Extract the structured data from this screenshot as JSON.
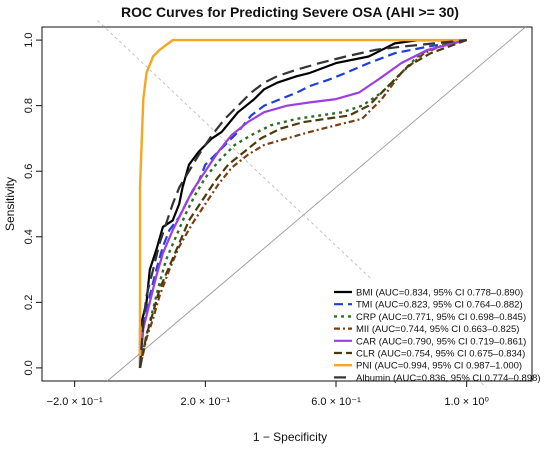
{
  "chart_data": {
    "type": "line",
    "title": "ROC Curves for Predicting Severe OSA (AHI >= 30)",
    "xlabel": "1 − Specificity",
    "ylabel": "Sensitivity",
    "xlim": [
      -0.3,
      1.2
    ],
    "ylim": [
      -0.04,
      1.04
    ],
    "x_ticks": [
      {
        "value": -0.2,
        "label": "−2.0 × 10⁻¹"
      },
      {
        "value": 0.2,
        "label": "2.0 × 10⁻¹"
      },
      {
        "value": 0.6,
        "label": "6.0 × 10⁻¹"
      },
      {
        "value": 1.0,
        "label": "1.0 × 10⁰"
      }
    ],
    "y_ticks": [
      {
        "value": 0.0,
        "label": "0.0"
      },
      {
        "value": 0.2,
        "label": "0.2"
      },
      {
        "value": 0.4,
        "label": "0.4"
      },
      {
        "value": 0.6,
        "label": "0.6"
      },
      {
        "value": 0.8,
        "label": "0.8"
      },
      {
        "value": 1.0,
        "label": "1.0"
      }
    ],
    "grid": false,
    "legend_position": "bottom-right",
    "reference_lines": [
      {
        "points": [
          [
            -0.1,
            -0.04
          ],
          [
            1.18,
            1.04
          ]
        ],
        "color": "#9a9a9a",
        "style": "solid"
      },
      {
        "points": [
          [
            -0.13,
            1.06
          ],
          [
            1.06,
            -0.06
          ]
        ],
        "color": "#bdbdbd",
        "style": "dashed"
      }
    ],
    "series": [
      {
        "name": "BMI (AUC=0.834, 95% CI 0.778–0.890)",
        "color": "#000000",
        "dash": "",
        "width": 2.2,
        "points": [
          [
            0.0,
            0.0
          ],
          [
            0.0,
            0.12
          ],
          [
            0.02,
            0.2
          ],
          [
            0.03,
            0.3
          ],
          [
            0.05,
            0.36
          ],
          [
            0.07,
            0.43
          ],
          [
            0.1,
            0.45
          ],
          [
            0.12,
            0.5
          ],
          [
            0.13,
            0.55
          ],
          [
            0.15,
            0.62
          ],
          [
            0.18,
            0.66
          ],
          [
            0.22,
            0.7
          ],
          [
            0.25,
            0.72
          ],
          [
            0.3,
            0.78
          ],
          [
            0.35,
            0.82
          ],
          [
            0.38,
            0.85
          ],
          [
            0.42,
            0.87
          ],
          [
            0.48,
            0.89
          ],
          [
            0.52,
            0.9
          ],
          [
            0.6,
            0.93
          ],
          [
            0.7,
            0.95
          ],
          [
            0.78,
            0.99
          ],
          [
            0.85,
            1.0
          ],
          [
            1.0,
            1.0
          ]
        ]
      },
      {
        "name": "TMI (AUC=0.823, 95% CI 0.764–0.882)",
        "color": "#1f3fd8",
        "dash": "9 5",
        "width": 2.2,
        "points": [
          [
            0.0,
            0.0
          ],
          [
            0.01,
            0.13
          ],
          [
            0.03,
            0.22
          ],
          [
            0.05,
            0.3
          ],
          [
            0.07,
            0.37
          ],
          [
            0.09,
            0.42
          ],
          [
            0.12,
            0.46
          ],
          [
            0.15,
            0.52
          ],
          [
            0.18,
            0.57
          ],
          [
            0.2,
            0.62
          ],
          [
            0.25,
            0.67
          ],
          [
            0.3,
            0.72
          ],
          [
            0.34,
            0.77
          ],
          [
            0.38,
            0.8
          ],
          [
            0.43,
            0.82
          ],
          [
            0.48,
            0.84
          ],
          [
            0.52,
            0.86
          ],
          [
            0.58,
            0.88
          ],
          [
            0.63,
            0.9
          ],
          [
            0.7,
            0.93
          ],
          [
            0.78,
            0.96
          ],
          [
            0.88,
            0.98
          ],
          [
            1.0,
            1.0
          ]
        ]
      },
      {
        "name": "CRP (AUC=0.771, 95% CI 0.698–0.845)",
        "color": "#2c6e2a",
        "dash": "3 4",
        "width": 2.4,
        "points": [
          [
            0.0,
            0.0
          ],
          [
            0.02,
            0.1
          ],
          [
            0.04,
            0.18
          ],
          [
            0.06,
            0.26
          ],
          [
            0.08,
            0.33
          ],
          [
            0.11,
            0.4
          ],
          [
            0.14,
            0.47
          ],
          [
            0.17,
            0.53
          ],
          [
            0.2,
            0.58
          ],
          [
            0.24,
            0.63
          ],
          [
            0.29,
            0.68
          ],
          [
            0.34,
            0.71
          ],
          [
            0.4,
            0.74
          ],
          [
            0.48,
            0.76
          ],
          [
            0.55,
            0.77
          ],
          [
            0.62,
            0.78
          ],
          [
            0.68,
            0.8
          ],
          [
            0.74,
            0.84
          ],
          [
            0.8,
            0.9
          ],
          [
            0.86,
            0.96
          ],
          [
            0.94,
            0.99
          ],
          [
            1.0,
            1.0
          ]
        ]
      },
      {
        "name": "MII (AUC=0.744, 95% CI 0.663–0.825)",
        "color": "#7a3e10",
        "dash": "6 3 2 3",
        "width": 2.2,
        "points": [
          [
            0.0,
            0.0
          ],
          [
            0.02,
            0.09
          ],
          [
            0.04,
            0.15
          ],
          [
            0.06,
            0.22
          ],
          [
            0.09,
            0.3
          ],
          [
            0.12,
            0.37
          ],
          [
            0.16,
            0.44
          ],
          [
            0.2,
            0.5
          ],
          [
            0.24,
            0.56
          ],
          [
            0.28,
            0.61
          ],
          [
            0.33,
            0.65
          ],
          [
            0.38,
            0.68
          ],
          [
            0.45,
            0.7
          ],
          [
            0.52,
            0.72
          ],
          [
            0.6,
            0.74
          ],
          [
            0.68,
            0.76
          ],
          [
            0.74,
            0.82
          ],
          [
            0.8,
            0.9
          ],
          [
            0.87,
            0.96
          ],
          [
            0.94,
            0.99
          ],
          [
            1.0,
            1.0
          ]
        ]
      },
      {
        "name": "CAR (AUC=0.790, 95% CI 0.719–0.861)",
        "color": "#9b3fe0",
        "dash": "",
        "width": 2.2,
        "points": [
          [
            0.0,
            0.0
          ],
          [
            0.01,
            0.12
          ],
          [
            0.03,
            0.2
          ],
          [
            0.05,
            0.28
          ],
          [
            0.07,
            0.35
          ],
          [
            0.1,
            0.42
          ],
          [
            0.13,
            0.48
          ],
          [
            0.16,
            0.54
          ],
          [
            0.2,
            0.6
          ],
          [
            0.24,
            0.66
          ],
          [
            0.28,
            0.71
          ],
          [
            0.33,
            0.75
          ],
          [
            0.38,
            0.78
          ],
          [
            0.45,
            0.8
          ],
          [
            0.52,
            0.81
          ],
          [
            0.6,
            0.82
          ],
          [
            0.67,
            0.84
          ],
          [
            0.73,
            0.88
          ],
          [
            0.8,
            0.93
          ],
          [
            0.88,
            0.97
          ],
          [
            1.0,
            1.0
          ]
        ]
      },
      {
        "name": "CLR (AUC=0.754, 95% CI 0.675–0.834)",
        "color": "#4b3a0e",
        "dash": "8 4",
        "width": 2.2,
        "points": [
          [
            0.0,
            0.0
          ],
          [
            0.02,
            0.1
          ],
          [
            0.04,
            0.17
          ],
          [
            0.06,
            0.24
          ],
          [
            0.09,
            0.31
          ],
          [
            0.12,
            0.38
          ],
          [
            0.15,
            0.45
          ],
          [
            0.19,
            0.51
          ],
          [
            0.23,
            0.57
          ],
          [
            0.27,
            0.62
          ],
          [
            0.32,
            0.66
          ],
          [
            0.37,
            0.7
          ],
          [
            0.43,
            0.73
          ],
          [
            0.5,
            0.75
          ],
          [
            0.57,
            0.76
          ],
          [
            0.64,
            0.77
          ],
          [
            0.7,
            0.8
          ],
          [
            0.76,
            0.86
          ],
          [
            0.82,
            0.92
          ],
          [
            0.89,
            0.96
          ],
          [
            1.0,
            1.0
          ]
        ]
      },
      {
        "name": "PNI (AUC=0.994, 95% CI 0.987–1.000)",
        "color": "#f5a623",
        "dash": "",
        "width": 2.4,
        "points": [
          [
            0.0,
            0.0
          ],
          [
            0.0,
            0.55
          ],
          [
            0.01,
            0.82
          ],
          [
            0.02,
            0.9
          ],
          [
            0.04,
            0.95
          ],
          [
            0.06,
            0.97
          ],
          [
            0.08,
            0.985
          ],
          [
            0.1,
            1.0
          ],
          [
            1.0,
            1.0
          ]
        ]
      },
      {
        "name": "Albumin (AUC=0.836, 95% CI 0.774–0.898)",
        "color": "#333333",
        "dash": "12 6",
        "width": 2.2,
        "points": [
          [
            0.0,
            0.0
          ],
          [
            0.01,
            0.14
          ],
          [
            0.02,
            0.22
          ],
          [
            0.04,
            0.3
          ],
          [
            0.06,
            0.38
          ],
          [
            0.08,
            0.44
          ],
          [
            0.1,
            0.5
          ],
          [
            0.12,
            0.55
          ],
          [
            0.15,
            0.6
          ],
          [
            0.18,
            0.65
          ],
          [
            0.22,
            0.71
          ],
          [
            0.26,
            0.76
          ],
          [
            0.3,
            0.8
          ],
          [
            0.34,
            0.84
          ],
          [
            0.38,
            0.87
          ],
          [
            0.42,
            0.89
          ],
          [
            0.48,
            0.91
          ],
          [
            0.55,
            0.93
          ],
          [
            0.63,
            0.95
          ],
          [
            0.72,
            0.97
          ],
          [
            0.8,
            0.98
          ],
          [
            0.9,
            0.99
          ],
          [
            1.0,
            1.0
          ]
        ]
      }
    ]
  }
}
